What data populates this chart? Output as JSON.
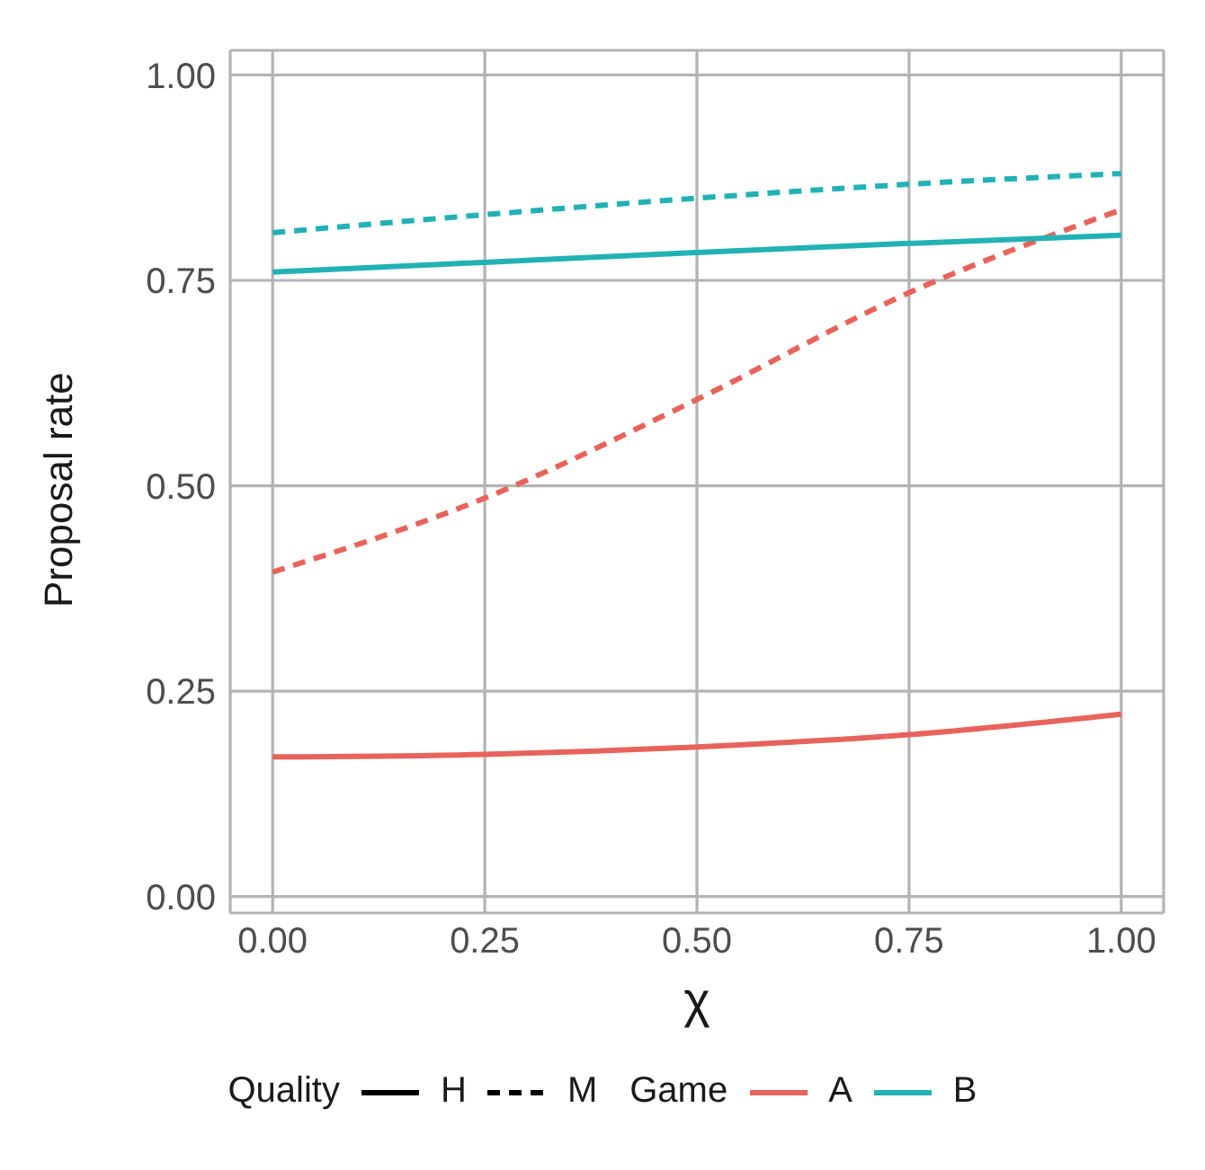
{
  "chart_data": {
    "type": "line",
    "xlabel": "χ",
    "ylabel": "Proposal rate",
    "x": [
      0,
      0.25,
      0.5,
      0.75,
      1
    ],
    "series": [
      {
        "color": "#e8635b",
        "line_style": "solid",
        "values": [
          0.17,
          0.173,
          0.182,
          0.197,
          0.222
        ]
      },
      {
        "color": "#e8635b",
        "line_style": "dashed",
        "values": [
          0.395,
          0.485,
          0.605,
          0.735,
          0.836
        ]
      },
      {
        "color": "#22b2b5",
        "line_style": "solid",
        "values": [
          0.76,
          0.772,
          0.784,
          0.795,
          0.805
        ]
      },
      {
        "color": "#22b2b5",
        "line_style": "dashed",
        "values": [
          0.808,
          0.83,
          0.85,
          0.867,
          0.88
        ]
      }
    ],
    "xlim": [
      -0.05,
      1.05
    ],
    "xticks": [
      {
        "value": 0,
        "label": "0.00"
      },
      {
        "value": 0.25,
        "label": "0.25"
      },
      {
        "value": 0.5,
        "label": "0.50"
      },
      {
        "value": 0.75,
        "label": "0.75"
      },
      {
        "value": 1,
        "label": "1.00"
      }
    ],
    "ylim": [
      -0.02,
      1.03
    ],
    "yticks": [
      {
        "value": 0,
        "label": "0.00"
      },
      {
        "value": 0.25,
        "label": "0.25"
      },
      {
        "value": 0.5,
        "label": "0.50"
      },
      {
        "value": 0.75,
        "label": "0.75"
      },
      {
        "value": 1,
        "label": "1.00"
      }
    ],
    "grid": true,
    "marker": "none",
    "annotations": [
      "Quality",
      "H",
      "M",
      "Game",
      "A",
      "B"
    ]
  }
}
